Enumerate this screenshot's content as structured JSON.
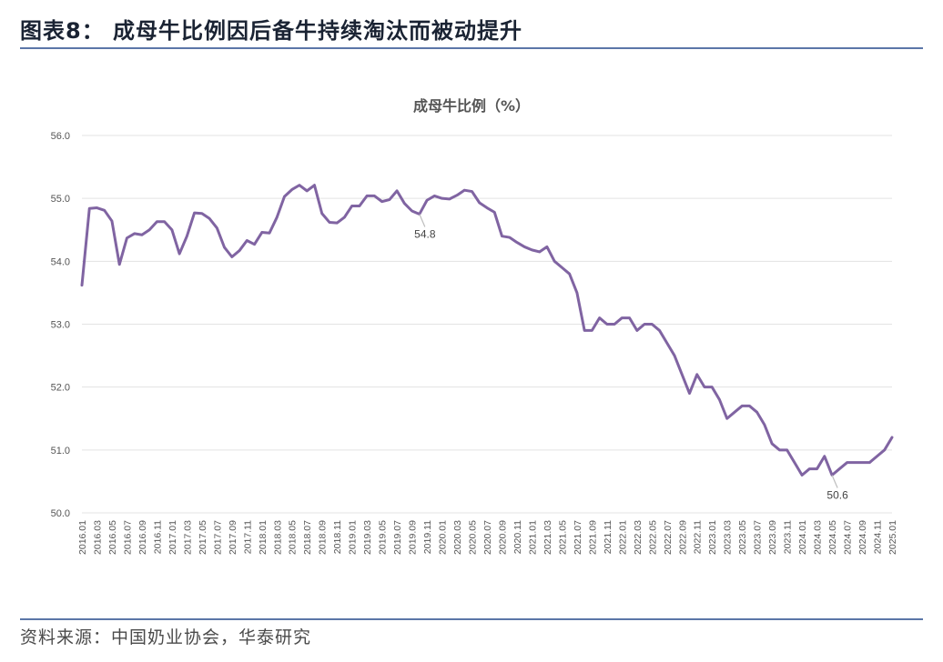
{
  "header": {
    "title": "图表8：  成母牛比例因后备牛持续淘汰而被动提升"
  },
  "footer": {
    "source": "资料来源：中国奶业协会，华泰研究"
  },
  "colors": {
    "line": "#8064a2",
    "grid": "#e3e3e3",
    "rule": "#5b76a8",
    "callout": "#bdbdbd"
  },
  "chart_data": {
    "type": "line",
    "title": "成母牛比例（%）",
    "xlabel": "",
    "ylabel": "",
    "ylim": [
      50.0,
      56.0
    ],
    "yticks": [
      "50.0",
      "51.0",
      "52.0",
      "53.0",
      "54.0",
      "55.0",
      "56.0"
    ],
    "grid": true,
    "legend": "none",
    "x_tick_labels": [
      "2016.01",
      "2016.03",
      "2016.05",
      "2016.07",
      "2016.09",
      "2016.11",
      "2017.01",
      "2017.03",
      "2017.05",
      "2017.07",
      "2017.09",
      "2017.11",
      "2018.01",
      "2018.03",
      "2018.05",
      "2018.07",
      "2018.09",
      "2018.11",
      "2019.01",
      "2019.03",
      "2019.05",
      "2019.07",
      "2019.09",
      "2019.11",
      "2020.01",
      "2020.03",
      "2020.05",
      "2020.07",
      "2020.09",
      "2020.11",
      "2021.01",
      "2021.03",
      "2021.05",
      "2021.07",
      "2021.09",
      "2021.11",
      "2022.01",
      "2022.03",
      "2022.05",
      "2022.07",
      "2022.09",
      "2022.11",
      "2023.01",
      "2023.03",
      "2023.05",
      "2023.07",
      "2023.09",
      "2023.11",
      "2024.01",
      "2024.03",
      "2024.05",
      "2024.07",
      "2024.09",
      "2024.11",
      "2025.01"
    ],
    "series": [
      {
        "values": [
          53.62,
          54.84,
          54.85,
          54.81,
          54.64,
          53.95,
          54.37,
          54.44,
          54.42,
          54.5,
          54.63,
          54.63,
          54.5,
          54.12,
          54.4,
          54.77,
          54.76,
          54.68,
          54.53,
          54.22,
          54.07,
          54.17,
          54.33,
          54.27,
          54.46,
          54.45,
          54.7,
          55.03,
          55.14,
          55.21,
          55.12,
          55.21,
          54.76,
          54.62,
          54.61,
          54.7,
          54.88,
          54.88,
          55.04,
          55.04,
          54.95,
          54.98,
          55.12,
          54.92,
          54.8,
          54.75,
          54.97,
          55.04,
          55.0,
          54.99,
          55.05,
          55.13,
          55.11,
          54.93,
          54.85,
          54.78,
          54.4,
          54.38,
          54.3,
          54.23,
          54.18,
          54.15,
          54.23,
          54.0,
          53.9,
          53.8,
          53.5,
          52.9,
          52.9,
          53.1,
          53.0,
          53.0,
          53.1,
          53.1,
          52.9,
          53.0,
          53.0,
          52.9,
          52.7,
          52.5,
          52.2,
          51.9,
          52.2,
          52.0,
          52.0,
          51.8,
          51.5,
          51.6,
          51.7,
          51.7,
          51.6,
          51.4,
          51.1,
          51.0,
          51.0,
          50.8,
          50.6,
          50.7,
          50.7,
          50.9,
          50.6,
          50.7,
          50.8,
          50.8,
          50.8,
          50.8,
          50.9,
          51.0,
          51.2
        ]
      }
    ],
    "annotations": [
      {
        "index": 45,
        "text": "54.8"
      },
      {
        "index": 100,
        "text": "50.6"
      }
    ]
  }
}
